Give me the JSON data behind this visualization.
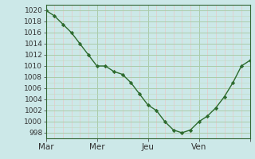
{
  "x_values": [
    0,
    1,
    2,
    3,
    4,
    5,
    6,
    7,
    8,
    9,
    10,
    11,
    12,
    13,
    14,
    15,
    16,
    17,
    18,
    19,
    20,
    21,
    22,
    23,
    24
  ],
  "y_values": [
    1020,
    1019,
    1017.5,
    1016,
    1014,
    1012,
    1010,
    1010,
    1009,
    1008.5,
    1007,
    1005,
    1003,
    1002,
    1000,
    998.5,
    998,
    998.5,
    1000,
    1001,
    1002.5,
    1004.5,
    1007,
    1010,
    1011
  ],
  "x_day_ticks": [
    0,
    6,
    12,
    18,
    24
  ],
  "x_day_labels": [
    "Mar",
    "Mer",
    "Jeu",
    "Ven",
    ""
  ],
  "y_min": 997,
  "y_max": 1021,
  "y_ticks": [
    998,
    1000,
    1002,
    1004,
    1006,
    1008,
    1010,
    1012,
    1014,
    1016,
    1018,
    1020
  ],
  "line_color": "#2d6a2d",
  "marker_color": "#2d6a2d",
  "bg_color": "#cce8e8",
  "major_grid_color": "#aaccaa",
  "minor_grid_color_y": "#c0dac0",
  "minor_grid_color_x": "#e8c8c8",
  "tick_label_fontsize": 6.5,
  "x_tick_label_fontsize": 7.5
}
